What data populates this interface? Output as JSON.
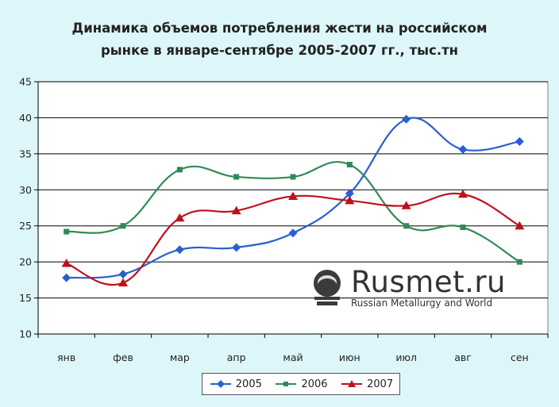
{
  "chart_data": {
    "type": "line",
    "title_line1": "Динамика объемов потребления жести на российском",
    "title_line2": "рынке в январе-сентябре 2005-2007 гг., тыс.тн",
    "categories": [
      "янв",
      "фев",
      "мар",
      "апр",
      "май",
      "июн",
      "июл",
      "авг",
      "сен"
    ],
    "ylim": [
      10,
      45
    ],
    "yticks": [
      "10",
      "15",
      "20",
      "25",
      "30",
      "35",
      "40",
      "45"
    ],
    "grid": true,
    "legend_position": "bottom",
    "series": [
      {
        "name": "2005",
        "color": "#2a5fd1",
        "marker": "diamond",
        "values": [
          17.8,
          18.3,
          21.7,
          22.0,
          24.0,
          29.5,
          39.8,
          35.6,
          36.7
        ]
      },
      {
        "name": "2006",
        "color": "#2e8b57",
        "marker": "square",
        "values": [
          24.2,
          25.0,
          32.8,
          31.8,
          31.8,
          33.5,
          25.0,
          24.8,
          20.0
        ]
      },
      {
        "name": "2007",
        "color": "#c0111c",
        "marker": "triangle",
        "values": [
          19.8,
          17.1,
          26.1,
          27.1,
          29.1,
          28.5,
          27.8,
          29.4,
          25.0
        ]
      }
    ]
  },
  "watermark": {
    "name": "Rusmet.ru",
    "subtitle": "Russian Metallurgy and World",
    "icon": "rusmet-logo-icon"
  }
}
